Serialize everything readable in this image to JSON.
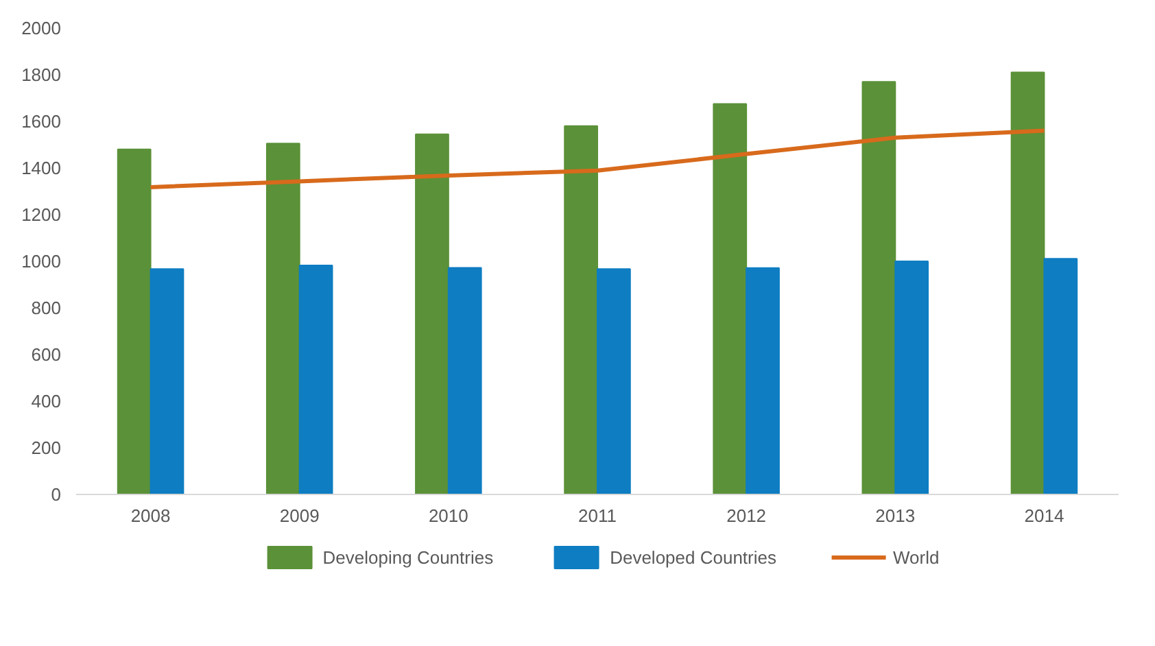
{
  "chart_data": {
    "type": "bar",
    "categories": [
      "2008",
      "2009",
      "2010",
      "2011",
      "2012",
      "2013",
      "2014"
    ],
    "series": [
      {
        "name": "Developing Countries",
        "color": "#5b9138",
        "values": [
          1480,
          1505,
          1545,
          1580,
          1675,
          1770,
          1810
        ]
      },
      {
        "name": "Developed Countries",
        "color": "#0e7dc2",
        "values": [
          967,
          982,
          972,
          967,
          971,
          1000,
          1011
        ]
      },
      {
        "name": "World",
        "type": "line",
        "color": "#d86a1c",
        "values": [
          1318,
          1343,
          1368,
          1389,
          1460,
          1530,
          1560
        ]
      }
    ],
    "ylim": [
      0,
      2000
    ],
    "yticks": [
      0,
      200,
      400,
      600,
      800,
      1000,
      1200,
      1400,
      1600,
      1800,
      2000
    ],
    "grid": false,
    "legend": "bottom"
  }
}
